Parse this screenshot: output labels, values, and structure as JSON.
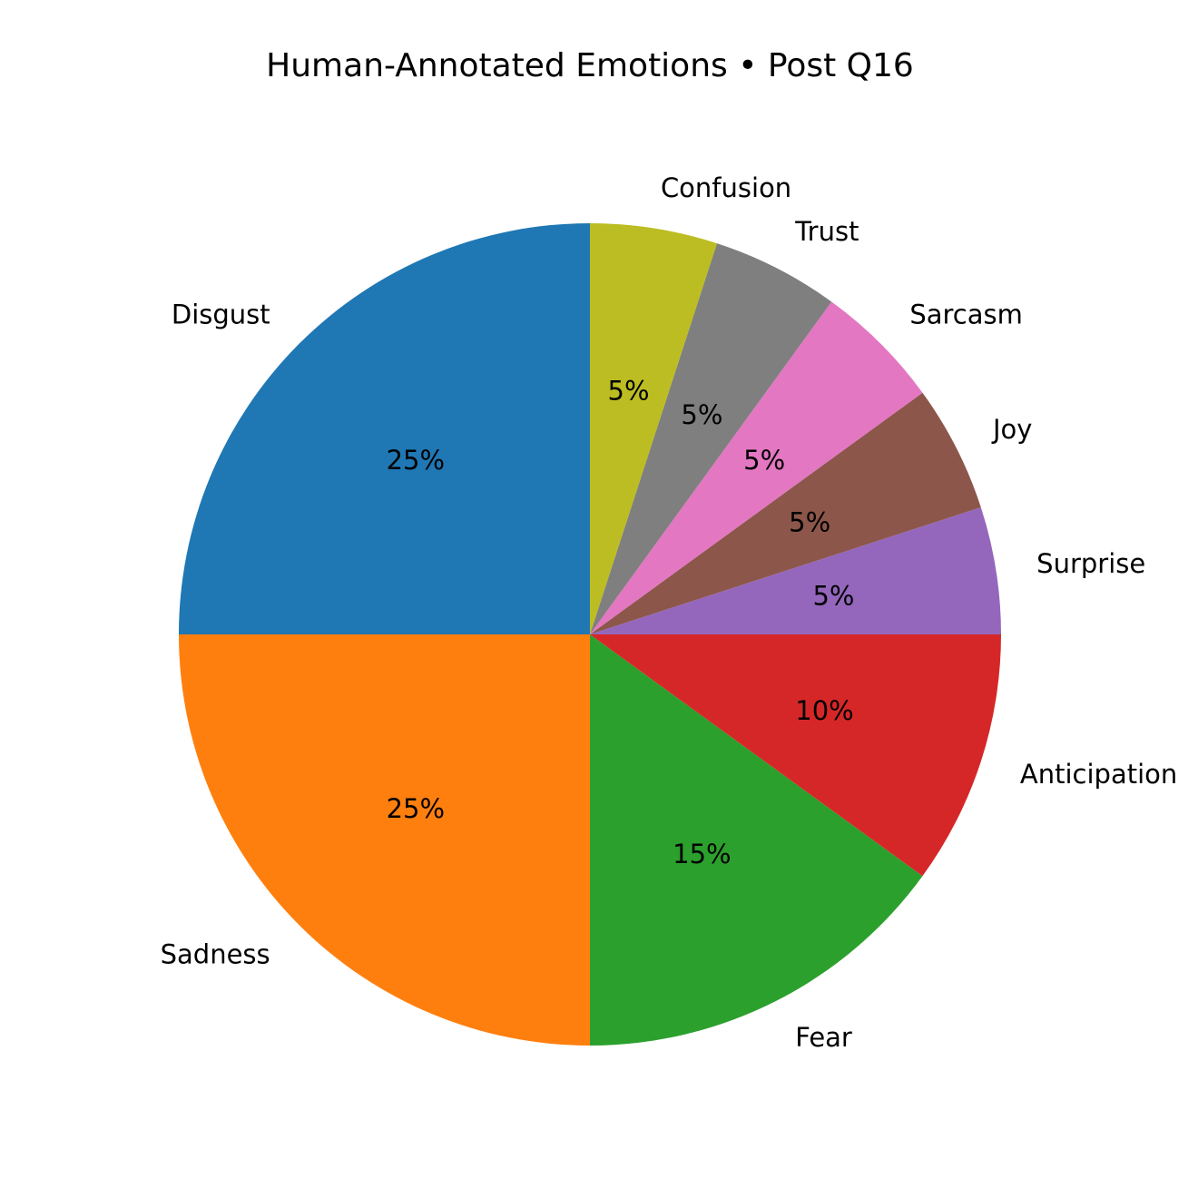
{
  "chart_data": {
    "type": "pie",
    "title": "Human-Annotated Emotions • Post Q16",
    "start_angle_deg": 90,
    "direction": "counterclockwise",
    "slices": [
      {
        "label": "Disgust",
        "value": 25,
        "pct_label": "25%",
        "color": "#1f77b4"
      },
      {
        "label": "Sadness",
        "value": 25,
        "pct_label": "25%",
        "color": "#ff7f0e"
      },
      {
        "label": "Fear",
        "value": 15,
        "pct_label": "15%",
        "color": "#2ca02c"
      },
      {
        "label": "Anticipation",
        "value": 10,
        "pct_label": "10%",
        "color": "#d62728"
      },
      {
        "label": "Surprise",
        "value": 5,
        "pct_label": "5%",
        "color": "#9467bd"
      },
      {
        "label": "Joy",
        "value": 5,
        "pct_label": "5%",
        "color": "#8c564b"
      },
      {
        "label": "Sarcasm",
        "value": 5,
        "pct_label": "5%",
        "color": "#e377c2"
      },
      {
        "label": "Trust",
        "value": 5,
        "pct_label": "5%",
        "color": "#7f7f7f"
      },
      {
        "label": "Confusion",
        "value": 5,
        "pct_label": "5%",
        "color": "#bcbd22"
      }
    ]
  }
}
